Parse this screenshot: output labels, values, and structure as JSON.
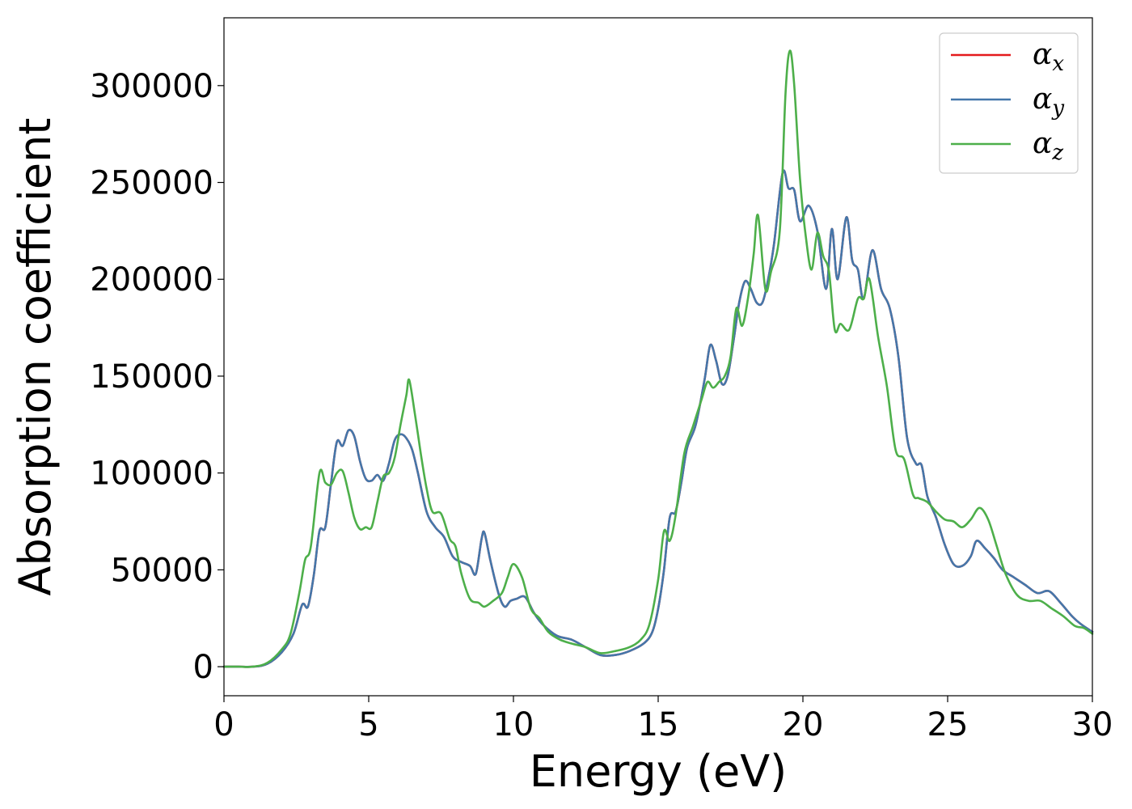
{
  "chart_data": {
    "type": "line",
    "xlabel": "Energy (eV)",
    "ylabel": "Absorption coefficient",
    "xlim": [
      0,
      30
    ],
    "ylim": [
      -15000,
      335000
    ],
    "xticks": [
      0,
      5,
      10,
      15,
      20,
      25,
      30
    ],
    "xtick_labels": [
      "0",
      "5",
      "10",
      "15",
      "20",
      "25",
      "30"
    ],
    "yticks": [
      0,
      50000,
      100000,
      150000,
      200000,
      250000,
      300000
    ],
    "ytick_labels": [
      "0",
      "50000",
      "100000",
      "150000",
      "200000",
      "250000",
      "300000"
    ],
    "grid": false,
    "legend_position": "top-right",
    "series": [
      {
        "name": "x",
        "legend_symbol": "α",
        "legend_sub": "x",
        "color": "#e41a1c",
        "x": [
          0,
          0.5,
          1.0,
          1.5,
          2.0,
          2.4,
          2.7,
          2.9,
          3.1,
          3.3,
          3.5,
          3.7,
          3.9,
          4.1,
          4.3,
          4.5,
          4.7,
          4.9,
          5.1,
          5.3,
          5.5,
          5.7,
          5.9,
          6.1,
          6.3,
          6.5,
          6.7,
          7.0,
          7.3,
          7.6,
          7.9,
          8.2,
          8.5,
          8.7,
          8.9,
          9.0,
          9.2,
          9.5,
          9.7,
          9.9,
          10.1,
          10.4,
          10.7,
          11.0,
          11.5,
          12.0,
          12.5,
          13.0,
          13.5,
          14.0,
          14.5,
          14.8,
          15.0,
          15.2,
          15.4,
          15.6,
          15.8,
          16.0,
          16.3,
          16.6,
          16.8,
          17.0,
          17.2,
          17.4,
          17.6,
          17.8,
          18.0,
          18.2,
          18.4,
          18.6,
          18.8,
          19.0,
          19.3,
          19.5,
          19.7,
          19.9,
          20.2,
          20.5,
          20.8,
          21.0,
          21.2,
          21.5,
          21.7,
          21.9,
          22.1,
          22.4,
          22.7,
          23.0,
          23.3,
          23.6,
          23.9,
          24.1,
          24.3,
          24.6,
          24.9,
          25.2,
          25.5,
          25.8,
          26.0,
          26.3,
          26.6,
          26.9,
          27.3,
          27.7,
          28.1,
          28.5,
          28.9,
          29.3,
          29.6,
          30.0
        ],
        "y": [
          0,
          0,
          0,
          1500,
          7500,
          17000,
          32000,
          31000,
          47000,
          70000,
          72000,
          95000,
          116000,
          114000,
          122000,
          119000,
          106000,
          97000,
          96000,
          99000,
          96000,
          105000,
          117000,
          120000,
          118000,
          112000,
          100000,
          80000,
          72000,
          67000,
          57000,
          54000,
          52000,
          48000,
          66000,
          69000,
          55000,
          37000,
          31000,
          34000,
          35000,
          36000,
          28000,
          22000,
          16000,
          14000,
          10000,
          6000,
          6000,
          8000,
          12000,
          18000,
          30000,
          50000,
          77000,
          80000,
          95000,
          113000,
          125000,
          148000,
          166000,
          158000,
          146000,
          150000,
          168000,
          188000,
          199000,
          195000,
          188000,
          188000,
          200000,
          218000,
          255000,
          247000,
          246000,
          230000,
          238000,
          225000,
          195000,
          226000,
          200000,
          232000,
          210000,
          205000,
          190000,
          215000,
          195000,
          185000,
          160000,
          118000,
          105000,
          104000,
          88000,
          77000,
          63000,
          53000,
          52000,
          57000,
          65000,
          61000,
          56000,
          50000,
          46000,
          42000,
          38000,
          39000,
          33000,
          26000,
          22000,
          18000
        ]
      },
      {
        "name": "y",
        "legend_symbol": "α",
        "legend_sub": "y",
        "color": "#4477aa",
        "x": [
          0,
          0.5,
          1.0,
          1.5,
          2.0,
          2.4,
          2.7,
          2.9,
          3.1,
          3.3,
          3.5,
          3.7,
          3.9,
          4.1,
          4.3,
          4.5,
          4.7,
          4.9,
          5.1,
          5.3,
          5.5,
          5.7,
          5.9,
          6.1,
          6.3,
          6.5,
          6.7,
          7.0,
          7.3,
          7.6,
          7.9,
          8.2,
          8.5,
          8.7,
          8.9,
          9.0,
          9.2,
          9.5,
          9.7,
          9.9,
          10.1,
          10.4,
          10.7,
          11.0,
          11.5,
          12.0,
          12.5,
          13.0,
          13.5,
          14.0,
          14.5,
          14.8,
          15.0,
          15.2,
          15.4,
          15.6,
          15.8,
          16.0,
          16.3,
          16.6,
          16.8,
          17.0,
          17.2,
          17.4,
          17.6,
          17.8,
          18.0,
          18.2,
          18.4,
          18.6,
          18.8,
          19.0,
          19.3,
          19.5,
          19.7,
          19.9,
          20.2,
          20.5,
          20.8,
          21.0,
          21.2,
          21.5,
          21.7,
          21.9,
          22.1,
          22.4,
          22.7,
          23.0,
          23.3,
          23.6,
          23.9,
          24.1,
          24.3,
          24.6,
          24.9,
          25.2,
          25.5,
          25.8,
          26.0,
          26.3,
          26.6,
          26.9,
          27.3,
          27.7,
          28.1,
          28.5,
          28.9,
          29.3,
          29.6,
          30.0
        ],
        "y": [
          0,
          0,
          0,
          1500,
          7500,
          17000,
          32000,
          31000,
          47000,
          70000,
          72000,
          95000,
          116000,
          114000,
          122000,
          119000,
          106000,
          97000,
          96000,
          99000,
          96000,
          105000,
          117000,
          120000,
          118000,
          112000,
          100000,
          80000,
          72000,
          67000,
          57000,
          54000,
          52000,
          48000,
          66000,
          69000,
          55000,
          37000,
          31000,
          34000,
          35000,
          36000,
          28000,
          22000,
          16000,
          14000,
          10000,
          6000,
          6000,
          8000,
          12000,
          18000,
          30000,
          50000,
          77000,
          80000,
          95000,
          113000,
          125000,
          148000,
          166000,
          158000,
          146000,
          150000,
          168000,
          188000,
          199000,
          195000,
          188000,
          188000,
          200000,
          218000,
          255000,
          247000,
          246000,
          230000,
          238000,
          225000,
          195000,
          226000,
          200000,
          232000,
          210000,
          205000,
          190000,
          215000,
          195000,
          185000,
          160000,
          118000,
          105000,
          104000,
          88000,
          77000,
          63000,
          53000,
          52000,
          57000,
          65000,
          61000,
          56000,
          50000,
          46000,
          42000,
          38000,
          39000,
          33000,
          26000,
          22000,
          18000
        ]
      },
      {
        "name": "z",
        "legend_symbol": "α",
        "legend_sub": "z",
        "color": "#4daf4a",
        "x": [
          0,
          0.5,
          1.0,
          1.5,
          2.0,
          2.3,
          2.6,
          2.8,
          3.0,
          3.3,
          3.5,
          3.7,
          3.9,
          4.1,
          4.3,
          4.5,
          4.7,
          4.9,
          5.1,
          5.3,
          5.5,
          5.7,
          5.9,
          6.1,
          6.3,
          6.4,
          6.6,
          6.8,
          7.0,
          7.2,
          7.5,
          7.8,
          8.0,
          8.2,
          8.5,
          8.8,
          9.0,
          9.3,
          9.6,
          9.8,
          10.0,
          10.3,
          10.6,
          10.9,
          11.2,
          11.6,
          12.0,
          12.5,
          13.0,
          13.5,
          14.0,
          14.4,
          14.7,
          15.0,
          15.2,
          15.4,
          15.6,
          15.9,
          16.2,
          16.5,
          16.7,
          16.9,
          17.1,
          17.3,
          17.5,
          17.7,
          17.9,
          18.1,
          18.3,
          18.45,
          18.7,
          18.9,
          19.2,
          19.4,
          19.55,
          19.7,
          19.9,
          20.1,
          20.3,
          20.5,
          20.7,
          20.9,
          21.1,
          21.3,
          21.6,
          21.9,
          22.1,
          22.3,
          22.6,
          22.9,
          23.2,
          23.5,
          23.8,
          24.0,
          24.3,
          24.6,
          24.9,
          25.2,
          25.5,
          25.8,
          26.1,
          26.4,
          26.7,
          27.0,
          27.4,
          27.8,
          28.2,
          28.6,
          29.0,
          29.4,
          29.7,
          30.0
        ],
        "y": [
          0,
          0,
          0,
          2000,
          9000,
          17000,
          38000,
          55000,
          62000,
          100000,
          95000,
          94000,
          100000,
          101000,
          90000,
          77000,
          71000,
          72000,
          72000,
          85000,
          98000,
          100000,
          108000,
          125000,
          140000,
          148000,
          130000,
          110000,
          92000,
          80000,
          79000,
          66000,
          62000,
          48000,
          35000,
          33000,
          31000,
          34000,
          38000,
          46000,
          53000,
          46000,
          30000,
          25000,
          18000,
          14000,
          12000,
          10000,
          7000,
          8000,
          10000,
          14000,
          22000,
          45000,
          70000,
          65000,
          78000,
          110000,
          124000,
          138000,
          147000,
          144000,
          147000,
          150000,
          160000,
          185000,
          176000,
          190000,
          213000,
          233000,
          195000,
          204000,
          225000,
          296000,
          318000,
          300000,
          252000,
          222000,
          205000,
          224000,
          212000,
          204000,
          174000,
          177000,
          174000,
          190000,
          190000,
          200000,
          170000,
          145000,
          112000,
          107000,
          89000,
          87000,
          85000,
          80000,
          76000,
          75000,
          72000,
          76000,
          82000,
          76000,
          62000,
          48000,
          37000,
          34000,
          34000,
          30000,
          26000,
          21000,
          20000,
          17000
        ]
      }
    ]
  }
}
